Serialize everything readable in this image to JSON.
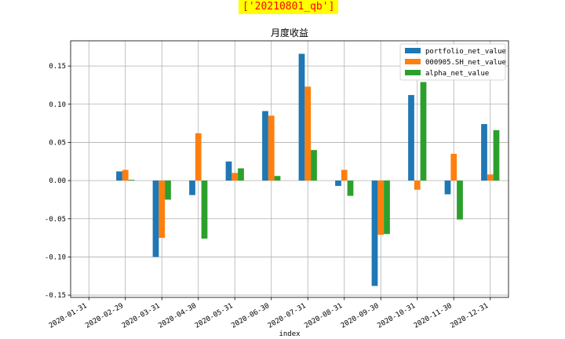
{
  "annotation": "['20210801_qb']",
  "chart_data": {
    "type": "bar",
    "title": "月度收益",
    "xlabel": "index",
    "ylabel": "",
    "ylim": [
      -0.153,
      0.183
    ],
    "yticks": [
      -0.15,
      -0.1,
      -0.05,
      0.0,
      0.05,
      0.1,
      0.15
    ],
    "ytick_labels": [
      "-0.15",
      "-0.10",
      "-0.05",
      "0.00",
      "0.05",
      "0.10",
      "0.15"
    ],
    "grid": true,
    "legend_position": "top-right",
    "categories": [
      "2020-01-31",
      "2020-02-29",
      "2020-03-31",
      "2020-04-30",
      "2020-05-31",
      "2020-06-30",
      "2020-07-31",
      "2020-08-31",
      "2020-09-30",
      "2020-10-31",
      "2020-11-30",
      "2020-12-31"
    ],
    "series": [
      {
        "name": "portfolio_net_value",
        "color": "#1f77b4",
        "values": [
          0.0,
          0.012,
          -0.1,
          -0.019,
          0.025,
          0.091,
          0.166,
          -0.007,
          -0.138,
          0.112,
          -0.018,
          0.074
        ]
      },
      {
        "name": "000905.SH_net_value",
        "color": "#ff7f0e",
        "values": [
          0.0,
          0.014,
          -0.075,
          0.062,
          0.01,
          0.085,
          0.123,
          0.014,
          -0.071,
          -0.012,
          0.035,
          0.008
        ]
      },
      {
        "name": "alpha_net_value",
        "color": "#2ca02c",
        "values": [
          0.0,
          0.001,
          -0.025,
          -0.076,
          0.016,
          0.006,
          0.04,
          -0.02,
          -0.07,
          0.129,
          -0.051,
          0.066
        ]
      }
    ]
  }
}
